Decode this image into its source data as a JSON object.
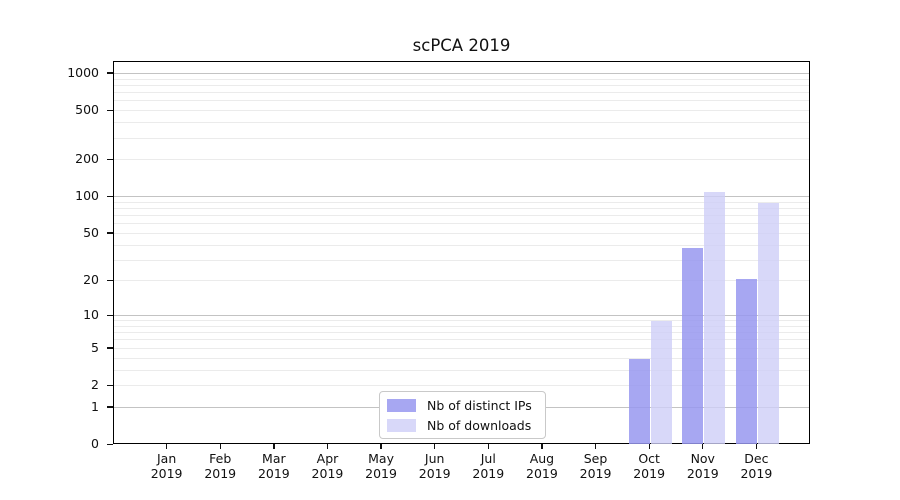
{
  "chart_data": {
    "type": "bar",
    "title": "scPCA 2019",
    "xlabel": "",
    "ylabel": "",
    "scale": "log1p",
    "ylim": [
      0,
      1250
    ],
    "yticks": [
      0,
      1,
      2,
      5,
      10,
      20,
      50,
      100,
      200,
      500,
      1000
    ],
    "grid": "both",
    "legend_position": "lower center",
    "categories": [
      {
        "month": "Jan",
        "year": "2019"
      },
      {
        "month": "Feb",
        "year": "2019"
      },
      {
        "month": "Mar",
        "year": "2019"
      },
      {
        "month": "Apr",
        "year": "2019"
      },
      {
        "month": "May",
        "year": "2019"
      },
      {
        "month": "Jun",
        "year": "2019"
      },
      {
        "month": "Jul",
        "year": "2019"
      },
      {
        "month": "Aug",
        "year": "2019"
      },
      {
        "month": "Sep",
        "year": "2019"
      },
      {
        "month": "Oct",
        "year": "2019"
      },
      {
        "month": "Nov",
        "year": "2019"
      },
      {
        "month": "Dec",
        "year": "2019"
      }
    ],
    "series": [
      {
        "name": "Nb of distinct IPs",
        "color": "rgba(152,152,240,0.85)",
        "values": [
          0,
          0,
          0,
          0,
          0,
          0,
          0,
          0,
          0,
          4,
          38,
          21
        ]
      },
      {
        "name": "Nb of downloads",
        "color": "rgba(206,206,248,0.80)",
        "values": [
          0,
          0,
          0,
          0,
          0,
          0,
          0,
          0,
          0,
          9,
          110,
          90
        ]
      }
    ],
    "colors": {
      "grid_major": "#c3c3c3",
      "grid_minor": "#ebebeb",
      "axis": "#000000",
      "background": "#ffffff"
    }
  }
}
